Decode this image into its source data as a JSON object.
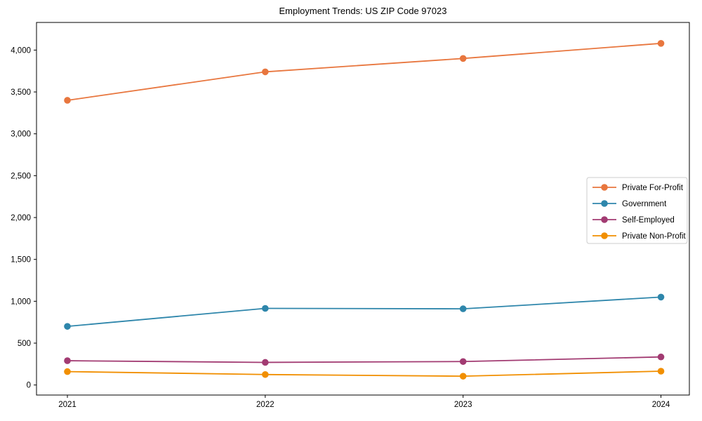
{
  "figure": {
    "background": "#ffffff",
    "spine_color": "#000000",
    "legend_border_color": "#cccccc"
  },
  "chart_data": {
    "type": "line",
    "title": "Employment Trends: US ZIP Code 97023",
    "categories": [
      "2021",
      "2022",
      "2023",
      "2024"
    ],
    "series": [
      {
        "name": "Private For-Profit",
        "color": "#E8763E",
        "values": [
          3400,
          3740,
          3900,
          4080
        ]
      },
      {
        "name": "Government",
        "color": "#2E86AB",
        "values": [
          700,
          915,
          910,
          1050
        ]
      },
      {
        "name": "Self-Employed",
        "color": "#A23B72",
        "values": [
          290,
          270,
          280,
          335
        ]
      },
      {
        "name": "Private Non-Profit",
        "color": "#F18F01",
        "values": [
          160,
          125,
          105,
          165
        ]
      }
    ],
    "xlabel": "",
    "ylabel": "",
    "ylim": [
      -120,
      4330
    ],
    "yticks": [
      0,
      500,
      1000,
      1500,
      2000,
      2500,
      3000,
      3500,
      4000
    ],
    "grid": false,
    "legend_position": "center-right",
    "marker": "circle",
    "line_width": 1.8
  }
}
